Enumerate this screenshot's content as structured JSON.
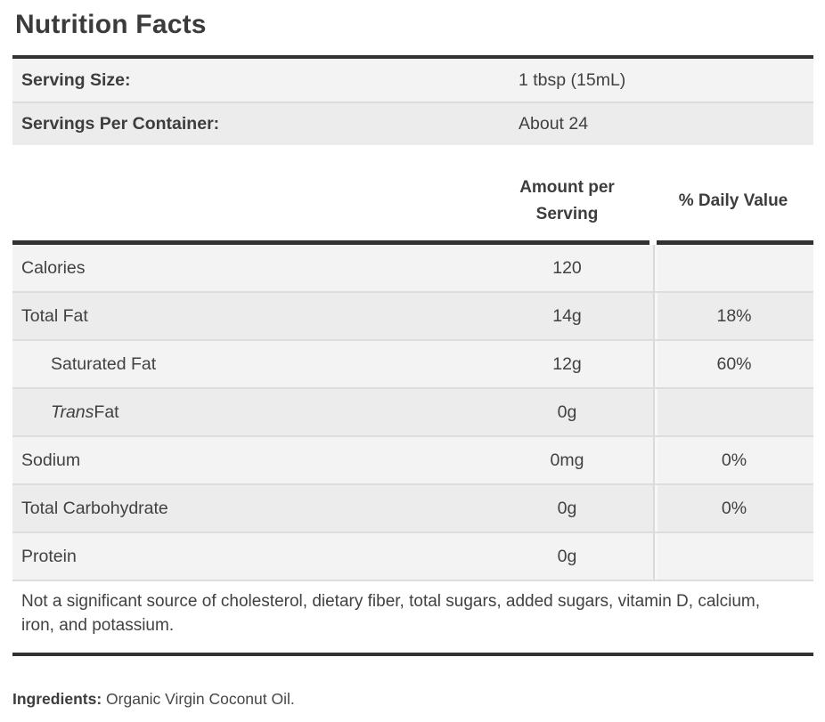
{
  "title": "Nutrition Facts",
  "serving_info": {
    "rows": [
      {
        "label": "Serving Size:",
        "value": "1 tbsp (15mL)"
      },
      {
        "label": "Servings Per Container:",
        "value": "About 24"
      }
    ]
  },
  "nutrition_table": {
    "amount_header": "Amount per Serving",
    "dv_header": "% Daily Value",
    "rows": [
      {
        "label": "Calories",
        "amount": "120",
        "dv": ""
      },
      {
        "label": "Total Fat",
        "amount": "14g",
        "dv": "18%"
      },
      {
        "label": "Saturated Fat",
        "amount": "12g",
        "dv": "60%"
      },
      {
        "label_italic": "Trans",
        "label": " Fat",
        "amount": "0g",
        "dv": ""
      },
      {
        "label": "Sodium",
        "amount": "0mg",
        "dv": "0%"
      },
      {
        "label": "Total Carbohydrate",
        "amount": "0g",
        "dv": "0%"
      },
      {
        "label": "Protein",
        "amount": "0g",
        "dv": ""
      }
    ]
  },
  "footnote": "Not a significant source of cholesterol, dietary fiber, total sugars, added sugars, vitamin D, calcium, iron, and potassium.",
  "ingredients": {
    "label": "Ingredients:",
    "value": " Organic Virgin Coconut Oil."
  },
  "colors": {
    "rule": "#313131",
    "row_light": "#f2f3f2",
    "row_dark": "#ececec",
    "divider": "#dcdddc",
    "text": "#414141"
  }
}
